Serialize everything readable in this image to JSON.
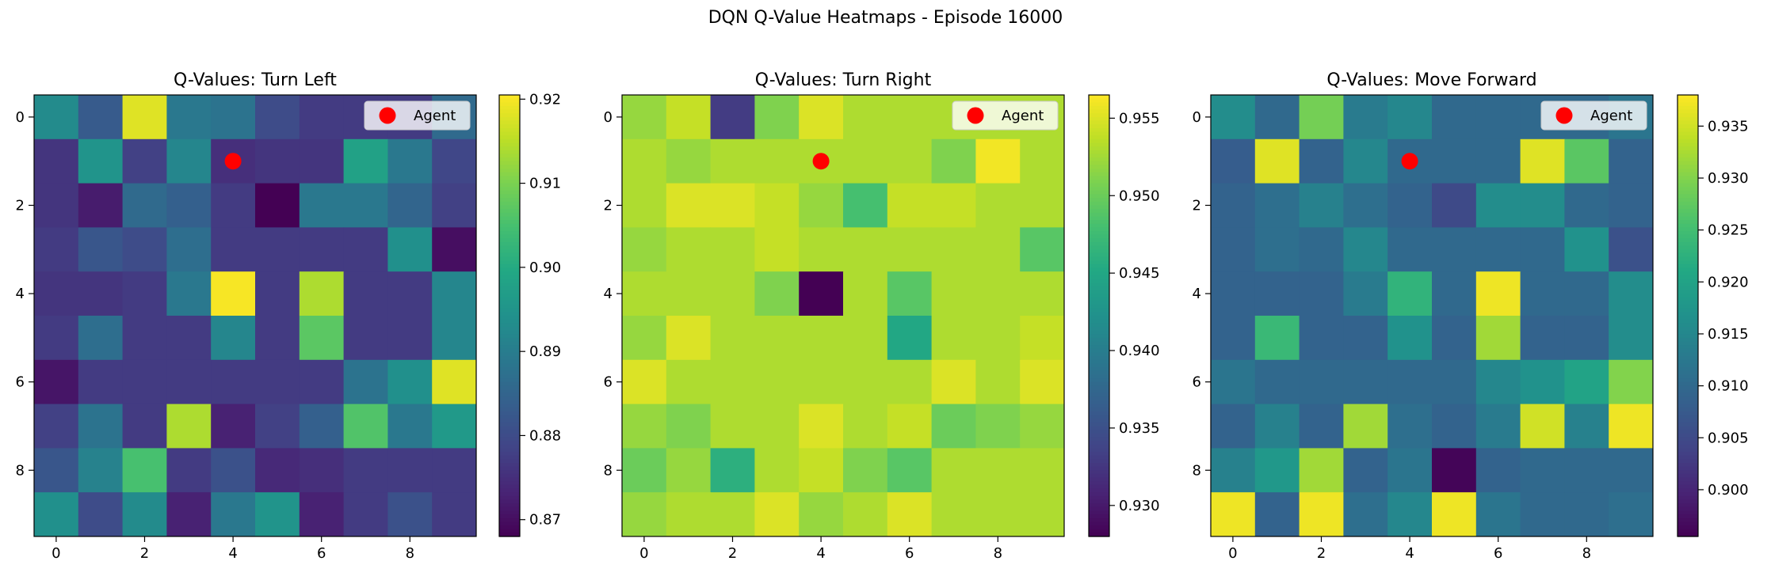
{
  "suptitle": "DQN Q-Value Heatmaps - Episode 16000",
  "chart_data": [
    {
      "type": "heatmap",
      "title": "Q-Values: Turn Left",
      "x_ticks": [
        "0",
        "2",
        "4",
        "6",
        "8"
      ],
      "y_ticks": [
        "0",
        "2",
        "4",
        "6",
        "8"
      ],
      "colorbar_ticks": [
        "0.87",
        "0.88",
        "0.89",
        "0.90",
        "0.91",
        "0.92"
      ],
      "vmin": 0.868,
      "vmax": 0.9205,
      "legend": "Agent",
      "legend_loc": "upper right",
      "agent": {
        "row": 1,
        "col": 4,
        "color": "#ff0000"
      },
      "values": [
        [
          0.893,
          0.883,
          0.918,
          0.889,
          0.888,
          0.88,
          0.877,
          0.877,
          0.877,
          0.886
        ],
        [
          0.876,
          0.895,
          0.878,
          0.892,
          0.875,
          0.876,
          0.876,
          0.898,
          0.889,
          0.879
        ],
        [
          0.876,
          0.872,
          0.886,
          0.884,
          0.877,
          0.868,
          0.889,
          0.889,
          0.885,
          0.878
        ],
        [
          0.877,
          0.882,
          0.88,
          0.887,
          0.877,
          0.877,
          0.877,
          0.877,
          0.894,
          0.87
        ],
        [
          0.876,
          0.876,
          0.877,
          0.889,
          0.92,
          0.877,
          0.914,
          0.877,
          0.877,
          0.892
        ],
        [
          0.877,
          0.887,
          0.877,
          0.877,
          0.892,
          0.877,
          0.907,
          0.877,
          0.877,
          0.892
        ],
        [
          0.871,
          0.877,
          0.877,
          0.877,
          0.877,
          0.877,
          0.877,
          0.888,
          0.894,
          0.918
        ],
        [
          0.878,
          0.888,
          0.877,
          0.914,
          0.873,
          0.878,
          0.884,
          0.906,
          0.889,
          0.896
        ],
        [
          0.882,
          0.891,
          0.905,
          0.877,
          0.881,
          0.874,
          0.875,
          0.877,
          0.877,
          0.877
        ],
        [
          0.894,
          0.88,
          0.893,
          0.873,
          0.889,
          0.895,
          0.873,
          0.877,
          0.881,
          0.877
        ]
      ]
    },
    {
      "type": "heatmap",
      "title": "Q-Values: Turn Right",
      "x_ticks": [
        "0",
        "2",
        "4",
        "6",
        "8"
      ],
      "y_ticks": [
        "0",
        "2",
        "4",
        "6",
        "8"
      ],
      "colorbar_ticks": [
        "0.930",
        "0.935",
        "0.940",
        "0.945",
        "0.950",
        "0.955"
      ],
      "vmin": 0.928,
      "vmax": 0.9565,
      "legend": "Agent",
      "legend_loc": "upper right",
      "agent": {
        "row": 1,
        "col": 4,
        "color": "#ff0000"
      },
      "values": [
        [
          0.952,
          0.954,
          0.933,
          0.951,
          0.955,
          0.953,
          0.953,
          0.953,
          0.953,
          0.953
        ],
        [
          0.953,
          0.952,
          0.953,
          0.953,
          0.953,
          0.953,
          0.953,
          0.951,
          0.956,
          0.953
        ],
        [
          0.953,
          0.955,
          0.955,
          0.954,
          0.952,
          0.948,
          0.954,
          0.954,
          0.953,
          0.953
        ],
        [
          0.952,
          0.953,
          0.953,
          0.954,
          0.953,
          0.953,
          0.953,
          0.953,
          0.953,
          0.949
        ],
        [
          0.953,
          0.953,
          0.953,
          0.951,
          0.928,
          0.953,
          0.949,
          0.953,
          0.953,
          0.953
        ],
        [
          0.952,
          0.955,
          0.953,
          0.953,
          0.953,
          0.953,
          0.945,
          0.953,
          0.953,
          0.954
        ],
        [
          0.955,
          0.953,
          0.953,
          0.953,
          0.953,
          0.953,
          0.953,
          0.955,
          0.953,
          0.955
        ],
        [
          0.952,
          0.951,
          0.953,
          0.953,
          0.955,
          0.953,
          0.954,
          0.95,
          0.951,
          0.952
        ],
        [
          0.95,
          0.952,
          0.946,
          0.953,
          0.954,
          0.951,
          0.949,
          0.953,
          0.953,
          0.953
        ],
        [
          0.952,
          0.953,
          0.953,
          0.955,
          0.952,
          0.953,
          0.955,
          0.953,
          0.953,
          0.953
        ]
      ]
    },
    {
      "type": "heatmap",
      "title": "Q-Values: Move Forward",
      "x_ticks": [
        "0",
        "2",
        "4",
        "6",
        "8"
      ],
      "y_ticks": [
        "0",
        "2",
        "4",
        "6",
        "8"
      ],
      "colorbar_ticks": [
        "0.900",
        "0.905",
        "0.910",
        "0.915",
        "0.920",
        "0.925",
        "0.930",
        "0.935"
      ],
      "vmin": 0.8955,
      "vmax": 0.938,
      "legend": "Agent",
      "legend_loc": "upper right",
      "agent": {
        "row": 1,
        "col": 4,
        "color": "#ff0000"
      },
      "values": [
        [
          0.916,
          0.91,
          0.929,
          0.913,
          0.915,
          0.91,
          0.91,
          0.91,
          0.91,
          0.912
        ],
        [
          0.908,
          0.936,
          0.909,
          0.915,
          0.91,
          0.91,
          0.91,
          0.936,
          0.927,
          0.909
        ],
        [
          0.909,
          0.911,
          0.914,
          0.911,
          0.909,
          0.905,
          0.916,
          0.916,
          0.91,
          0.909
        ],
        [
          0.909,
          0.911,
          0.91,
          0.915,
          0.91,
          0.91,
          0.91,
          0.91,
          0.917,
          0.906
        ],
        [
          0.909,
          0.909,
          0.909,
          0.913,
          0.923,
          0.91,
          0.937,
          0.91,
          0.91,
          0.916
        ],
        [
          0.909,
          0.924,
          0.909,
          0.909,
          0.917,
          0.909,
          0.932,
          0.909,
          0.909,
          0.916
        ],
        [
          0.912,
          0.91,
          0.91,
          0.91,
          0.91,
          0.91,
          0.915,
          0.917,
          0.92,
          0.93
        ],
        [
          0.909,
          0.914,
          0.909,
          0.932,
          0.911,
          0.909,
          0.913,
          0.935,
          0.914,
          0.937
        ],
        [
          0.914,
          0.918,
          0.932,
          0.909,
          0.912,
          0.896,
          0.909,
          0.91,
          0.91,
          0.91
        ],
        [
          0.937,
          0.909,
          0.937,
          0.911,
          0.915,
          0.937,
          0.912,
          0.91,
          0.91,
          0.911
        ]
      ]
    }
  ]
}
